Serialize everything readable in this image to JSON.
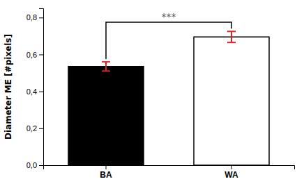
{
  "chart_data": {
    "type": "bar",
    "categories": [
      "BA",
      "WA"
    ],
    "values": [
      0.535,
      0.695
    ],
    "errors": [
      0.025,
      0.03
    ],
    "colors": [
      "#000000",
      "#ffffff"
    ],
    "ylabel": "Diameter ME [#pixels]",
    "ylim": [
      0,
      0.85
    ],
    "yticks": [
      {
        "value": 0.0,
        "label": "0,0"
      },
      {
        "value": 0.2,
        "label": "0,2"
      },
      {
        "value": 0.4,
        "label": "0,4"
      },
      {
        "value": 0.6,
        "label": "0,6"
      },
      {
        "value": 0.8,
        "label": "0,8"
      }
    ],
    "annotations": [
      {
        "text": "***",
        "y": 0.775,
        "categories": [
          "BA",
          "WA"
        ]
      }
    ],
    "grid": false
  }
}
